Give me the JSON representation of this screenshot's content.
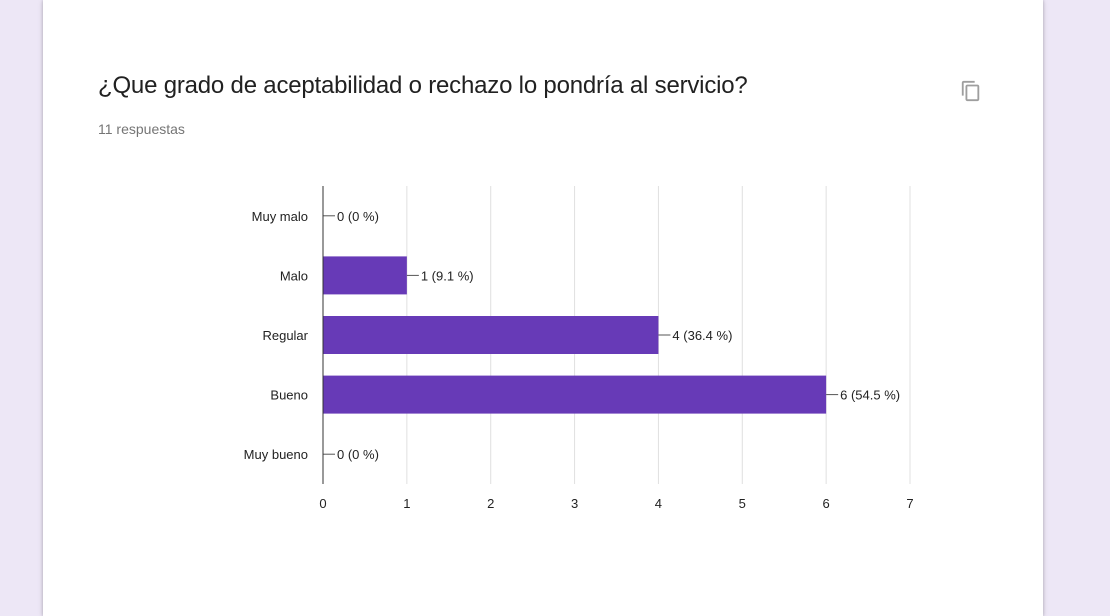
{
  "question": {
    "title": "¿Que grado de aceptabilidad o rechazo lo pondría al servicio?",
    "response_count": "11 respuestas",
    "copy_icon": "copy-icon"
  },
  "colors": {
    "background": "#ede7f6",
    "bar": "#673ab7"
  },
  "chart_data": {
    "type": "bar",
    "orientation": "horizontal",
    "categories": [
      "Muy malo",
      "Malo",
      "Regular",
      "Bueno",
      "Muy bueno"
    ],
    "values": [
      0,
      1,
      4,
      6,
      0
    ],
    "data_labels": [
      "0 (0 %)",
      "1 (9.1 %)",
      "4 (36.4 %)",
      "6 (54.5 %)",
      "0 (0 %)"
    ],
    "x_ticks": [
      "0",
      "1",
      "2",
      "3",
      "4",
      "5",
      "6",
      "7"
    ],
    "xlim": [
      0,
      7
    ],
    "title": "",
    "xlabel": "",
    "ylabel": "",
    "grid": true,
    "legend": "none"
  }
}
